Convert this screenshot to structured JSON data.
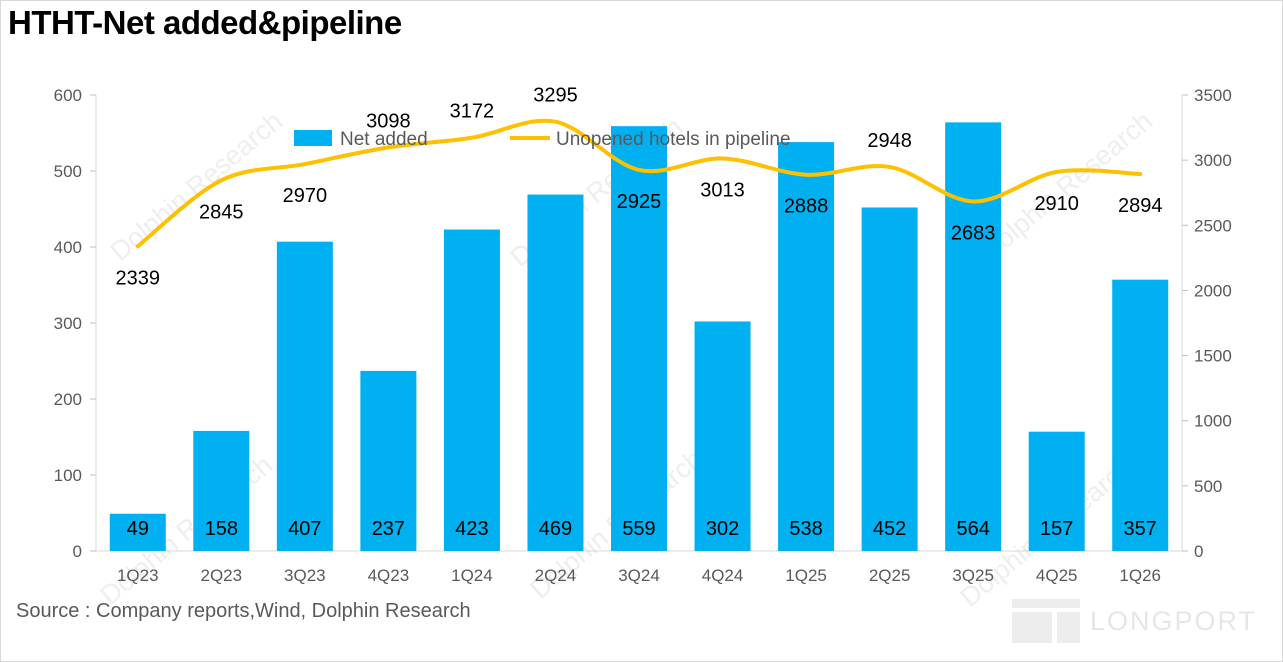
{
  "title": "HTHT-Net added&pipeline",
  "source": "Source : Company reports,Wind, Dolphin Research",
  "watermark": "Dolphin Research",
  "brand": "LONGPORT",
  "colors": {
    "bar": "#00b0f0",
    "line": "#ffc000"
  },
  "chart_data": {
    "type": "bar",
    "categories": [
      "1Q23",
      "2Q23",
      "3Q23",
      "4Q23",
      "1Q24",
      "2Q24",
      "3Q24",
      "4Q24",
      "1Q25",
      "2Q25",
      "3Q25",
      "4Q25",
      "1Q26"
    ],
    "series": [
      {
        "name": "Net added",
        "type": "bar",
        "axis": "left",
        "values": [
          49,
          158,
          407,
          237,
          423,
          469,
          559,
          302,
          538,
          452,
          564,
          157,
          357
        ]
      },
      {
        "name": "Unopened hotels in pipeline",
        "type": "line",
        "axis": "right",
        "values": [
          2339,
          2845,
          2970,
          3098,
          3172,
          3295,
          2925,
          3013,
          2888,
          2948,
          2683,
          2910,
          2894
        ]
      }
    ],
    "y_left": {
      "min": 0,
      "max": 600,
      "ticks": [
        0,
        100,
        200,
        300,
        400,
        500,
        600
      ]
    },
    "y_right": {
      "min": 0,
      "max": 3500,
      "ticks": [
        0,
        500,
        1000,
        1500,
        2000,
        2500,
        3000,
        3500
      ]
    },
    "legend": "top-center",
    "grid": false
  }
}
